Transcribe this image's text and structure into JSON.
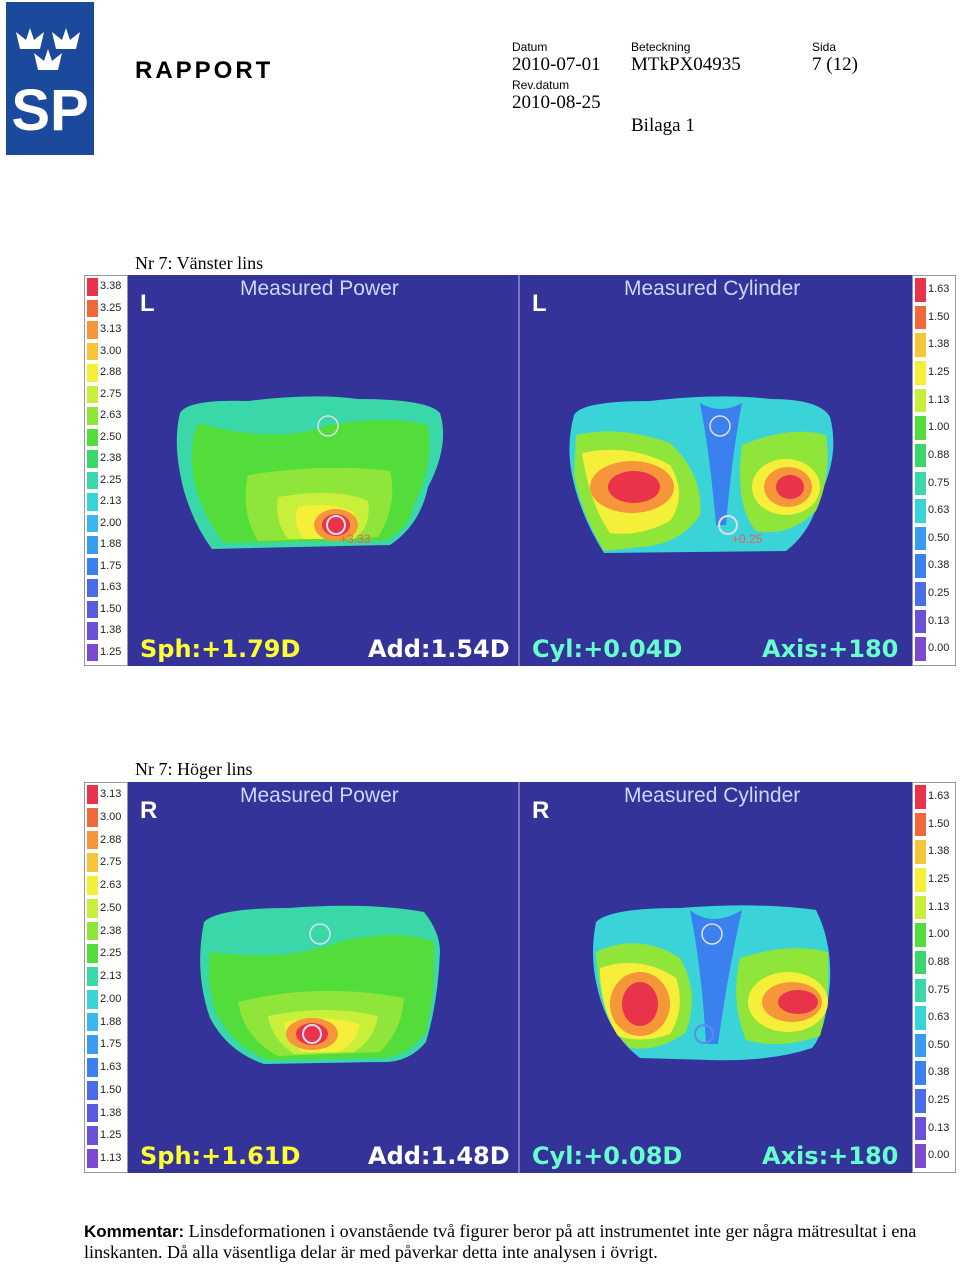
{
  "header": {
    "logo_text": "SP",
    "report_title": "RAPPORT",
    "date_label": "Datum",
    "date_value": "2010-07-01",
    "rev_label": "Rev.datum",
    "rev_value": "2010-08-25",
    "designation_label": "Beteckning",
    "designation_value": "MTkPX04935",
    "page_label": "Sida",
    "page_value": "7 (12)",
    "appendix": "Bilaga 1"
  },
  "sections": [
    {
      "caption": "Nr 7: Vänster lins",
      "power": {
        "title": "Measured Power",
        "letter": "L",
        "marker": "+3.33",
        "sph": "Sph:+1.79D",
        "add": "Add:1.54D",
        "scale": [
          "3.38",
          "3.25",
          "3.13",
          "3.00",
          "2.88",
          "2.75",
          "2.63",
          "2.50",
          "2.38",
          "2.25",
          "2.13",
          "2.00",
          "1.88",
          "1.75",
          "1.63",
          "1.50",
          "1.38",
          "1.25"
        ]
      },
      "cylinder": {
        "title": "Measured Cylinder",
        "letter": "L",
        "marker": "+0.25",
        "cyl": "Cyl:+0.04D",
        "axis": "Axis:+180",
        "scale": [
          "1.63",
          "1.50",
          "1.38",
          "1.25",
          "1.13",
          "1.00",
          "0.88",
          "0.75",
          "0.63",
          "0.50",
          "0.38",
          "0.25",
          "0.13",
          "0.00"
        ]
      }
    },
    {
      "caption": "Nr 7: Höger lins",
      "power": {
        "title": "Measured Power",
        "letter": "R",
        "marker": "",
        "sph": "Sph:+1.61D",
        "add": "Add:1.48D",
        "scale": [
          "3.13",
          "3.00",
          "2.88",
          "2.75",
          "2.63",
          "2.50",
          "2.38",
          "2.25",
          "2.13",
          "2.00",
          "1.88",
          "1.75",
          "1.63",
          "1.50",
          "1.38",
          "1.25",
          "1.13"
        ]
      },
      "cylinder": {
        "title": "Measured Cylinder",
        "letter": "R",
        "marker": "",
        "cyl": "Cyl:+0.08D",
        "axis": "Axis:+180",
        "scale": [
          "1.63",
          "1.50",
          "1.38",
          "1.25",
          "1.13",
          "1.00",
          "0.88",
          "0.75",
          "0.63",
          "0.50",
          "0.38",
          "0.25",
          "0.13",
          "0.00"
        ]
      }
    }
  ],
  "comment": {
    "label": "Kommentar:",
    "text": "Linsdeformationen i ovanstående två figurer beror på att instrumentet inte ger några mätresultat i ena linskanten. Då alla väsentliga delar är med påverkar detta inte analysen i övrigt."
  },
  "colors": {
    "panel_bg": "#333399",
    "logo_bg": "#1b4a9c",
    "stat_yellow": "#ffff33",
    "scale_gradient": [
      "#e8334a",
      "#f0673a",
      "#f5963a",
      "#f7c53a",
      "#f6ef3a",
      "#c8ef3a",
      "#8fe53a",
      "#52dd3a",
      "#3ad86a",
      "#3ad8a8",
      "#3ad4d8",
      "#3ab8ec",
      "#3a9cf0",
      "#3a80ee",
      "#4a6ce8",
      "#5a5ce0",
      "#6a52d8",
      "#7a4ad0"
    ]
  }
}
